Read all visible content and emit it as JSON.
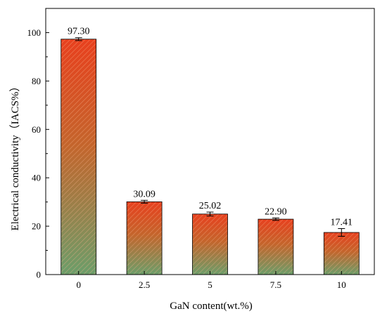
{
  "chart_data": {
    "type": "bar",
    "title": "",
    "xlabel": "GaN content(wt.%)",
    "ylabel": "Electrical conductivity（IACS%）",
    "categories": [
      "0",
      "2.5",
      "5",
      "7.5",
      "10"
    ],
    "values": [
      97.3,
      30.09,
      25.02,
      22.9,
      17.41
    ],
    "value_labels": [
      "97.30",
      "30.09",
      "25.02",
      "22.90",
      "17.41"
    ],
    "error": [
      0.6,
      0.6,
      0.8,
      0.5,
      1.6
    ],
    "ylim": [
      0,
      110
    ],
    "yticks": [
      0,
      20,
      40,
      60,
      80,
      100
    ],
    "grid": false,
    "legend": "none",
    "colors": {
      "bar_top": "#e8401e",
      "bar_bottom": "#6b9e6a",
      "hatch": "#f6b38c",
      "axis": "#000000"
    }
  }
}
